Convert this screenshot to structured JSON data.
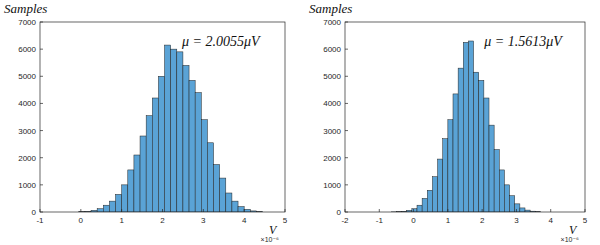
{
  "chart_data": [
    {
      "type": "histogram",
      "y_label": "Samples",
      "x_label": "V",
      "annotations": [
        "μ = 2.0055μV",
        "×10⁻⁶"
      ],
      "bins": [
        -0.05,
        0.1,
        0.25,
        0.4,
        0.55,
        0.7,
        0.85,
        1.0,
        1.15,
        1.3,
        1.45,
        1.6,
        1.75,
        1.9,
        2.05,
        2.2,
        2.35,
        2.5,
        2.65,
        2.8,
        2.95,
        3.1,
        3.25,
        3.4,
        3.55,
        3.7,
        3.85,
        4.0,
        4.15,
        4.3,
        4.45
      ],
      "values": [
        10,
        20,
        60,
        120,
        250,
        400,
        650,
        1000,
        1550,
        2100,
        2800,
        3550,
        4200,
        5000,
        6150,
        6000,
        5900,
        5400,
        4850,
        4400,
        3400,
        2550,
        1750,
        1250,
        700,
        400,
        200,
        100,
        40,
        15
      ],
      "color": "#5aa3d6",
      "xlim": [
        -1,
        5
      ],
      "xticks": [
        -1,
        0,
        1,
        2,
        3,
        4,
        5
      ],
      "ylim": [
        0,
        7000
      ],
      "yticks": [
        0,
        1000,
        2000,
        3000,
        4000,
        5000,
        6000,
        7000
      ],
      "grid": false
    },
    {
      "type": "histogram",
      "y_label": "Samples",
      "x_label": "V",
      "annotations": [
        "μ = 1.5613μV",
        "×10⁻⁶"
      ],
      "bins": [
        -0.65,
        -0.5,
        -0.35,
        -0.2,
        -0.05,
        0.1,
        0.25,
        0.4,
        0.55,
        0.7,
        0.85,
        1.0,
        1.15,
        1.3,
        1.45,
        1.6,
        1.75,
        1.9,
        2.05,
        2.2,
        2.35,
        2.5,
        2.65,
        2.8,
        2.95,
        3.1,
        3.25,
        3.4,
        3.55,
        3.7
      ],
      "values": [
        5,
        10,
        25,
        60,
        120,
        250,
        500,
        800,
        1300,
        1950,
        2700,
        3400,
        4350,
        5300,
        6250,
        6300,
        5150,
        4850,
        4200,
        3200,
        2300,
        1550,
        1000,
        600,
        300,
        150,
        70,
        30,
        10
      ],
      "color": "#5aa3d6",
      "xlim": [
        -2,
        5
      ],
      "xticks": [
        -2,
        -1,
        0,
        1,
        2,
        3,
        4,
        5
      ],
      "ylim": [
        0,
        7000
      ],
      "yticks": [
        0,
        1000,
        2000,
        3000,
        4000,
        5000,
        6000,
        7000
      ],
      "grid": false
    }
  ]
}
